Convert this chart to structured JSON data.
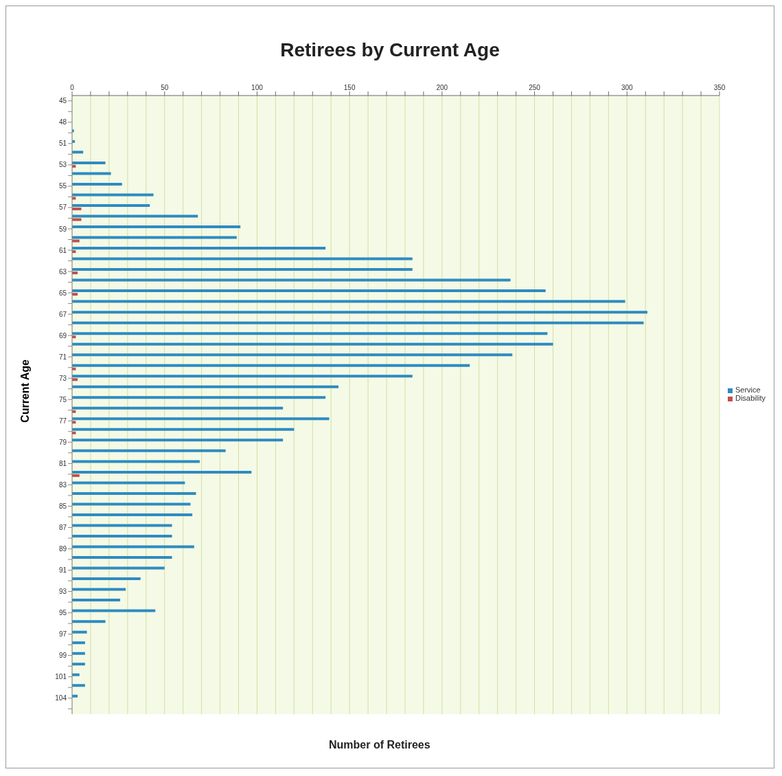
{
  "chart_data": {
    "type": "bar",
    "orientation": "horizontal",
    "title": "Retirees by Current Age",
    "xlabel": "Number of Retirees",
    "ylabel": "Current Age",
    "categories": [
      "45",
      null,
      "48",
      null,
      "51",
      null,
      "53",
      null,
      "55",
      null,
      "57",
      null,
      "59",
      null,
      "61",
      null,
      "63",
      null,
      "65",
      null,
      "67",
      null,
      "69",
      null,
      "71",
      null,
      "73",
      null,
      "75",
      null,
      "77",
      null,
      "79",
      null,
      "81",
      null,
      "83",
      null,
      "85",
      null,
      "87",
      null,
      "89",
      null,
      "91",
      null,
      "93",
      null,
      "95",
      null,
      "97",
      null,
      "99",
      null,
      "101",
      null,
      "104",
      null
    ],
    "series": [
      {
        "name": "Service",
        "color": "#2e8bc0",
        "values": [
          null,
          null,
          0,
          1,
          1.5,
          6,
          18,
          21,
          27,
          44,
          42,
          68,
          91,
          89,
          137,
          184,
          184,
          237,
          256,
          299,
          311,
          309,
          257,
          260,
          238,
          215,
          184,
          144,
          137,
          114,
          139,
          120,
          114,
          83,
          69,
          97,
          61,
          67,
          64,
          65,
          54,
          54,
          66,
          54,
          50,
          37,
          29,
          26,
          45,
          18,
          8,
          7,
          7,
          7,
          4,
          7,
          3,
          null
        ]
      },
      {
        "name": "Disability",
        "color": "#c0504d",
        "values": [
          0,
          0,
          0,
          0,
          0,
          0,
          2,
          0,
          0,
          2,
          5,
          5,
          0,
          4,
          2,
          0,
          3,
          0,
          3,
          0,
          0,
          0,
          2,
          0,
          0,
          2,
          3,
          0,
          0,
          2,
          2,
          2,
          0,
          0,
          0,
          4,
          0,
          0,
          0,
          0,
          0,
          0,
          0,
          0,
          0,
          0,
          0,
          0,
          0,
          0,
          0,
          0,
          0,
          0,
          0,
          0,
          0,
          0
        ]
      }
    ],
    "xlim": [
      0,
      350
    ],
    "xticks": [
      0,
      {
        "value": 10,
        "label": null
      },
      {
        "value": 20,
        "label": null
      },
      {
        "value": 30,
        "label": null
      },
      {
        "value": 40,
        "label": null
      },
      50,
      {
        "value": 60,
        "label": null
      },
      {
        "value": 70,
        "label": null
      },
      {
        "value": 80,
        "label": null
      },
      {
        "value": 90,
        "label": null
      },
      100,
      {
        "value": 110,
        "label": null
      },
      {
        "value": 120,
        "label": null
      },
      {
        "value": 130,
        "label": null
      },
      {
        "value": 140,
        "label": null
      },
      150,
      {
        "value": 160,
        "label": null
      },
      {
        "value": 170,
        "label": null
      },
      {
        "value": 180,
        "label": null
      },
      {
        "value": 190,
        "label": null
      },
      200,
      {
        "value": 210,
        "label": null
      },
      {
        "value": 220,
        "label": null
      },
      {
        "value": 230,
        "label": null
      },
      {
        "value": 240,
        "label": null
      },
      250,
      {
        "value": 260,
        "label": null
      },
      {
        "value": 270,
        "label": null
      },
      {
        "value": 280,
        "label": null
      },
      {
        "value": 290,
        "label": null
      },
      300,
      {
        "value": 310,
        "label": null
      },
      {
        "value": 320,
        "label": null
      },
      {
        "value": 330,
        "label": null
      },
      {
        "value": 340,
        "label": null
      },
      350
    ],
    "grid": "x",
    "legend": "right"
  }
}
